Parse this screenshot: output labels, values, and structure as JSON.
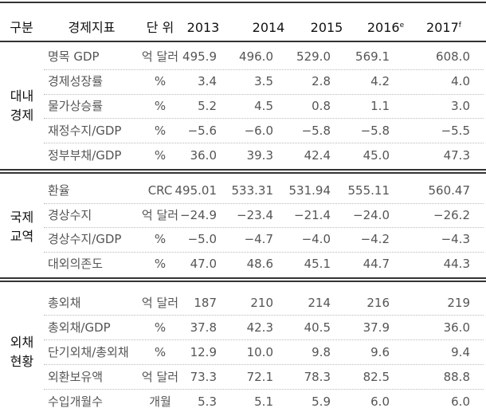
{
  "header": {
    "cells": [
      {
        "text": "구분"
      },
      {
        "text": "경제지표"
      },
      {
        "text": "단 위"
      },
      {
        "text": "2013"
      },
      {
        "text": "2014"
      },
      {
        "text": "2015"
      },
      {
        "text": "2016",
        "sup": "e"
      },
      {
        "text": "2017",
        "sup": "f"
      }
    ]
  },
  "groups": [
    {
      "label": [
        "대내",
        "경제"
      ],
      "rows": [
        [
          "명목 GDP",
          "억 달러",
          "495.9",
          "496.0",
          "529.0",
          "569.1",
          "608.0"
        ],
        [
          "경제성장률",
          "%",
          "3.4",
          "3.5",
          "2.8",
          "4.2",
          "4.0"
        ],
        [
          "물가상승률",
          "%",
          "5.2",
          "4.5",
          "0.8",
          "1.1",
          "3.0"
        ],
        [
          "재정수지/GDP",
          "%",
          "−5.6",
          "−6.0",
          "−5.8",
          "−5.8",
          "−5.5"
        ],
        [
          "정부부채/GDP",
          "%",
          "36.0",
          "39.3",
          "42.4",
          "45.0",
          "47.3"
        ]
      ]
    },
    {
      "label": [
        "국제",
        "교역"
      ],
      "rows": [
        [
          "환율",
          "CRC",
          "495.01",
          "533.31",
          "531.94",
          "555.11",
          "560.47"
        ],
        [
          "경상수지",
          "억 달러",
          "−24.9",
          "−23.4",
          "−21.4",
          "−24.0",
          "−26.2"
        ],
        [
          "경상수지/GDP",
          "%",
          "−5.0",
          "−4.7",
          "−4.0",
          "−4.2",
          "−4.3"
        ],
        [
          "대외의존도",
          "%",
          "47.0",
          "48.6",
          "45.1",
          "44.7",
          "44.3"
        ]
      ]
    },
    {
      "label": [
        "외채",
        "현황"
      ],
      "rows": [
        [
          "총외채",
          "억 달러",
          "187",
          "210",
          "214",
          "216",
          "219"
        ],
        [
          "총외채/GDP",
          "%",
          "37.8",
          "42.3",
          "40.5",
          "37.9",
          "36.0"
        ],
        [
          "단기외채/총외채",
          "%",
          "12.9",
          "10.0",
          "9.8",
          "9.6",
          "9.4"
        ],
        [
          "외환보유액",
          "억 달러",
          "73.3",
          "72.1",
          "78.3",
          "82.5",
          "88.8"
        ],
        [
          "수입개월수",
          "개월",
          "5.3",
          "5.1",
          "5.9",
          "6.0",
          "6.0"
        ]
      ]
    }
  ]
}
